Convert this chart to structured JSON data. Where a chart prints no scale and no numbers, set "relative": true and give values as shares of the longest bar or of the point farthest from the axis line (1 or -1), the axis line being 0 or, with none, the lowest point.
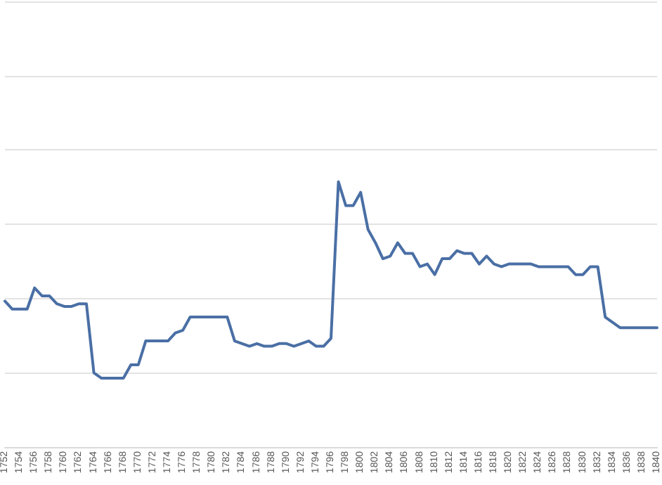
{
  "chart_data": {
    "type": "line",
    "relative": true,
    "grid": "y",
    "marker": "none",
    "line_style": "solid",
    "categories": [
      "1752",
      null,
      "1754",
      null,
      "1756",
      null,
      "1758",
      null,
      "1760",
      null,
      "1762",
      null,
      "1764",
      null,
      "1766",
      null,
      "1768",
      null,
      "1770",
      null,
      "1772",
      null,
      "1774",
      null,
      "1776",
      null,
      "1778",
      null,
      "1780",
      null,
      "1782",
      null,
      "1784",
      null,
      "1786",
      null,
      "1788",
      null,
      "1790",
      null,
      "1792",
      null,
      "1794",
      null,
      "1796",
      null,
      "1798",
      null,
      "1800",
      null,
      "1802",
      null,
      "1804",
      null,
      "1806",
      null,
      "1808",
      null,
      "1810",
      null,
      "1812",
      null,
      "1814",
      null,
      "1816",
      null,
      "1818",
      null,
      "1820",
      null,
      "1822",
      null,
      "1824",
      null,
      "1826",
      null,
      "1828",
      null,
      "1830",
      null,
      "1832",
      null,
      "1834",
      null,
      "1836",
      null,
      "1838",
      null,
      "1840"
    ],
    "series": [
      {
        "color": "#4a6fa5",
        "values": [
          0.55,
          0.52,
          0.52,
          0.52,
          0.6,
          0.57,
          0.57,
          0.54,
          0.53,
          0.53,
          0.54,
          0.54,
          0.28,
          0.26,
          0.26,
          0.26,
          0.26,
          0.31,
          0.31,
          0.4,
          0.4,
          0.4,
          0.4,
          0.43,
          0.44,
          0.49,
          0.49,
          0.49,
          0.49,
          0.49,
          0.49,
          0.4,
          0.39,
          0.38,
          0.39,
          0.38,
          0.38,
          0.39,
          0.39,
          0.38,
          0.39,
          0.4,
          0.38,
          0.38,
          0.41,
          1,
          0.91,
          0.91,
          0.96,
          0.82,
          0.77,
          0.71,
          0.72,
          0.77,
          0.73,
          0.73,
          0.68,
          0.69,
          0.65,
          0.71,
          0.71,
          0.74,
          0.73,
          0.73,
          0.69,
          0.72,
          0.69,
          0.68,
          0.69,
          0.69,
          0.69,
          0.69,
          0.68,
          0.68,
          0.68,
          0.68,
          0.68,
          0.65,
          0.65,
          0.68,
          0.68,
          0.49,
          0.47,
          0.45,
          0.45,
          0.45,
          0.45,
          0.45,
          0.45
        ]
      }
    ]
  }
}
